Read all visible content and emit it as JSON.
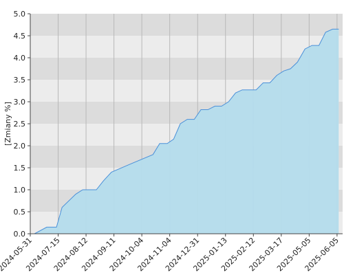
{
  "chart_data": {
    "type": "area",
    "y_label": "[Zmiany %]",
    "x": [
      0.15,
      0.59,
      0.94,
      1.14,
      1.63,
      1.88,
      2.37,
      2.62,
      2.91,
      3.65,
      4.4,
      4.64,
      4.91,
      5.14,
      5.38,
      5.63,
      5.88,
      6.12,
      6.37,
      6.62,
      6.86,
      7.11,
      7.36,
      7.6,
      8.1,
      8.35,
      8.59,
      8.84,
      9.09,
      9.33,
      9.58,
      9.85,
      10.1,
      10.35,
      10.59,
      10.84,
      11.06
    ],
    "values": [
      0,
      0.15,
      0.15,
      0.6,
      0.9,
      1.0,
      1.0,
      1.2,
      1.4,
      1.6,
      1.8,
      2.05,
      2.05,
      2.15,
      2.5,
      2.6,
      2.6,
      2.82,
      2.82,
      2.9,
      2.9,
      3.0,
      3.2,
      3.27,
      3.27,
      3.43,
      3.43,
      3.6,
      3.7,
      3.75,
      3.9,
      4.2,
      4.28,
      4.28,
      4.58,
      4.65,
      4.65
    ],
    "color": "#4a90d9",
    "fill": "#b4dcec",
    "xlim": [
      0,
      11.2
    ],
    "xticks": [
      {
        "value": 0,
        "label": "2024-05-31"
      },
      {
        "value": 1,
        "label": "2024-07-15"
      },
      {
        "value": 2,
        "label": "2024-08-12"
      },
      {
        "value": 3,
        "label": "2024-09-11"
      },
      {
        "value": 4,
        "label": "2024-10-04"
      },
      {
        "value": 5,
        "label": "2024-11-04"
      },
      {
        "value": 6,
        "label": "2024-12-31"
      },
      {
        "value": 7,
        "label": "2025-01-13"
      },
      {
        "value": 8,
        "label": "2025-02-12"
      },
      {
        "value": 9,
        "label": "2025-03-17"
      },
      {
        "value": 10,
        "label": "2025-05-05"
      },
      {
        "value": 11,
        "label": "2025-06-05"
      }
    ],
    "ylim": [
      0,
      5
    ],
    "yticks": [
      {
        "value": 0,
        "label": "0.0"
      },
      {
        "value": 0.5,
        "label": "0.5"
      },
      {
        "value": 1,
        "label": "1.0"
      },
      {
        "value": 1.5,
        "label": "1.5"
      },
      {
        "value": 2,
        "label": "2.0"
      },
      {
        "value": 2.5,
        "label": "2.5"
      },
      {
        "value": 3,
        "label": "3.0"
      },
      {
        "value": 3.5,
        "label": "3.5"
      },
      {
        "value": 4,
        "label": "4.0"
      },
      {
        "value": 4.5,
        "label": "4.5"
      },
      {
        "value": 5,
        "label": "5.0"
      }
    ],
    "grid": true
  }
}
